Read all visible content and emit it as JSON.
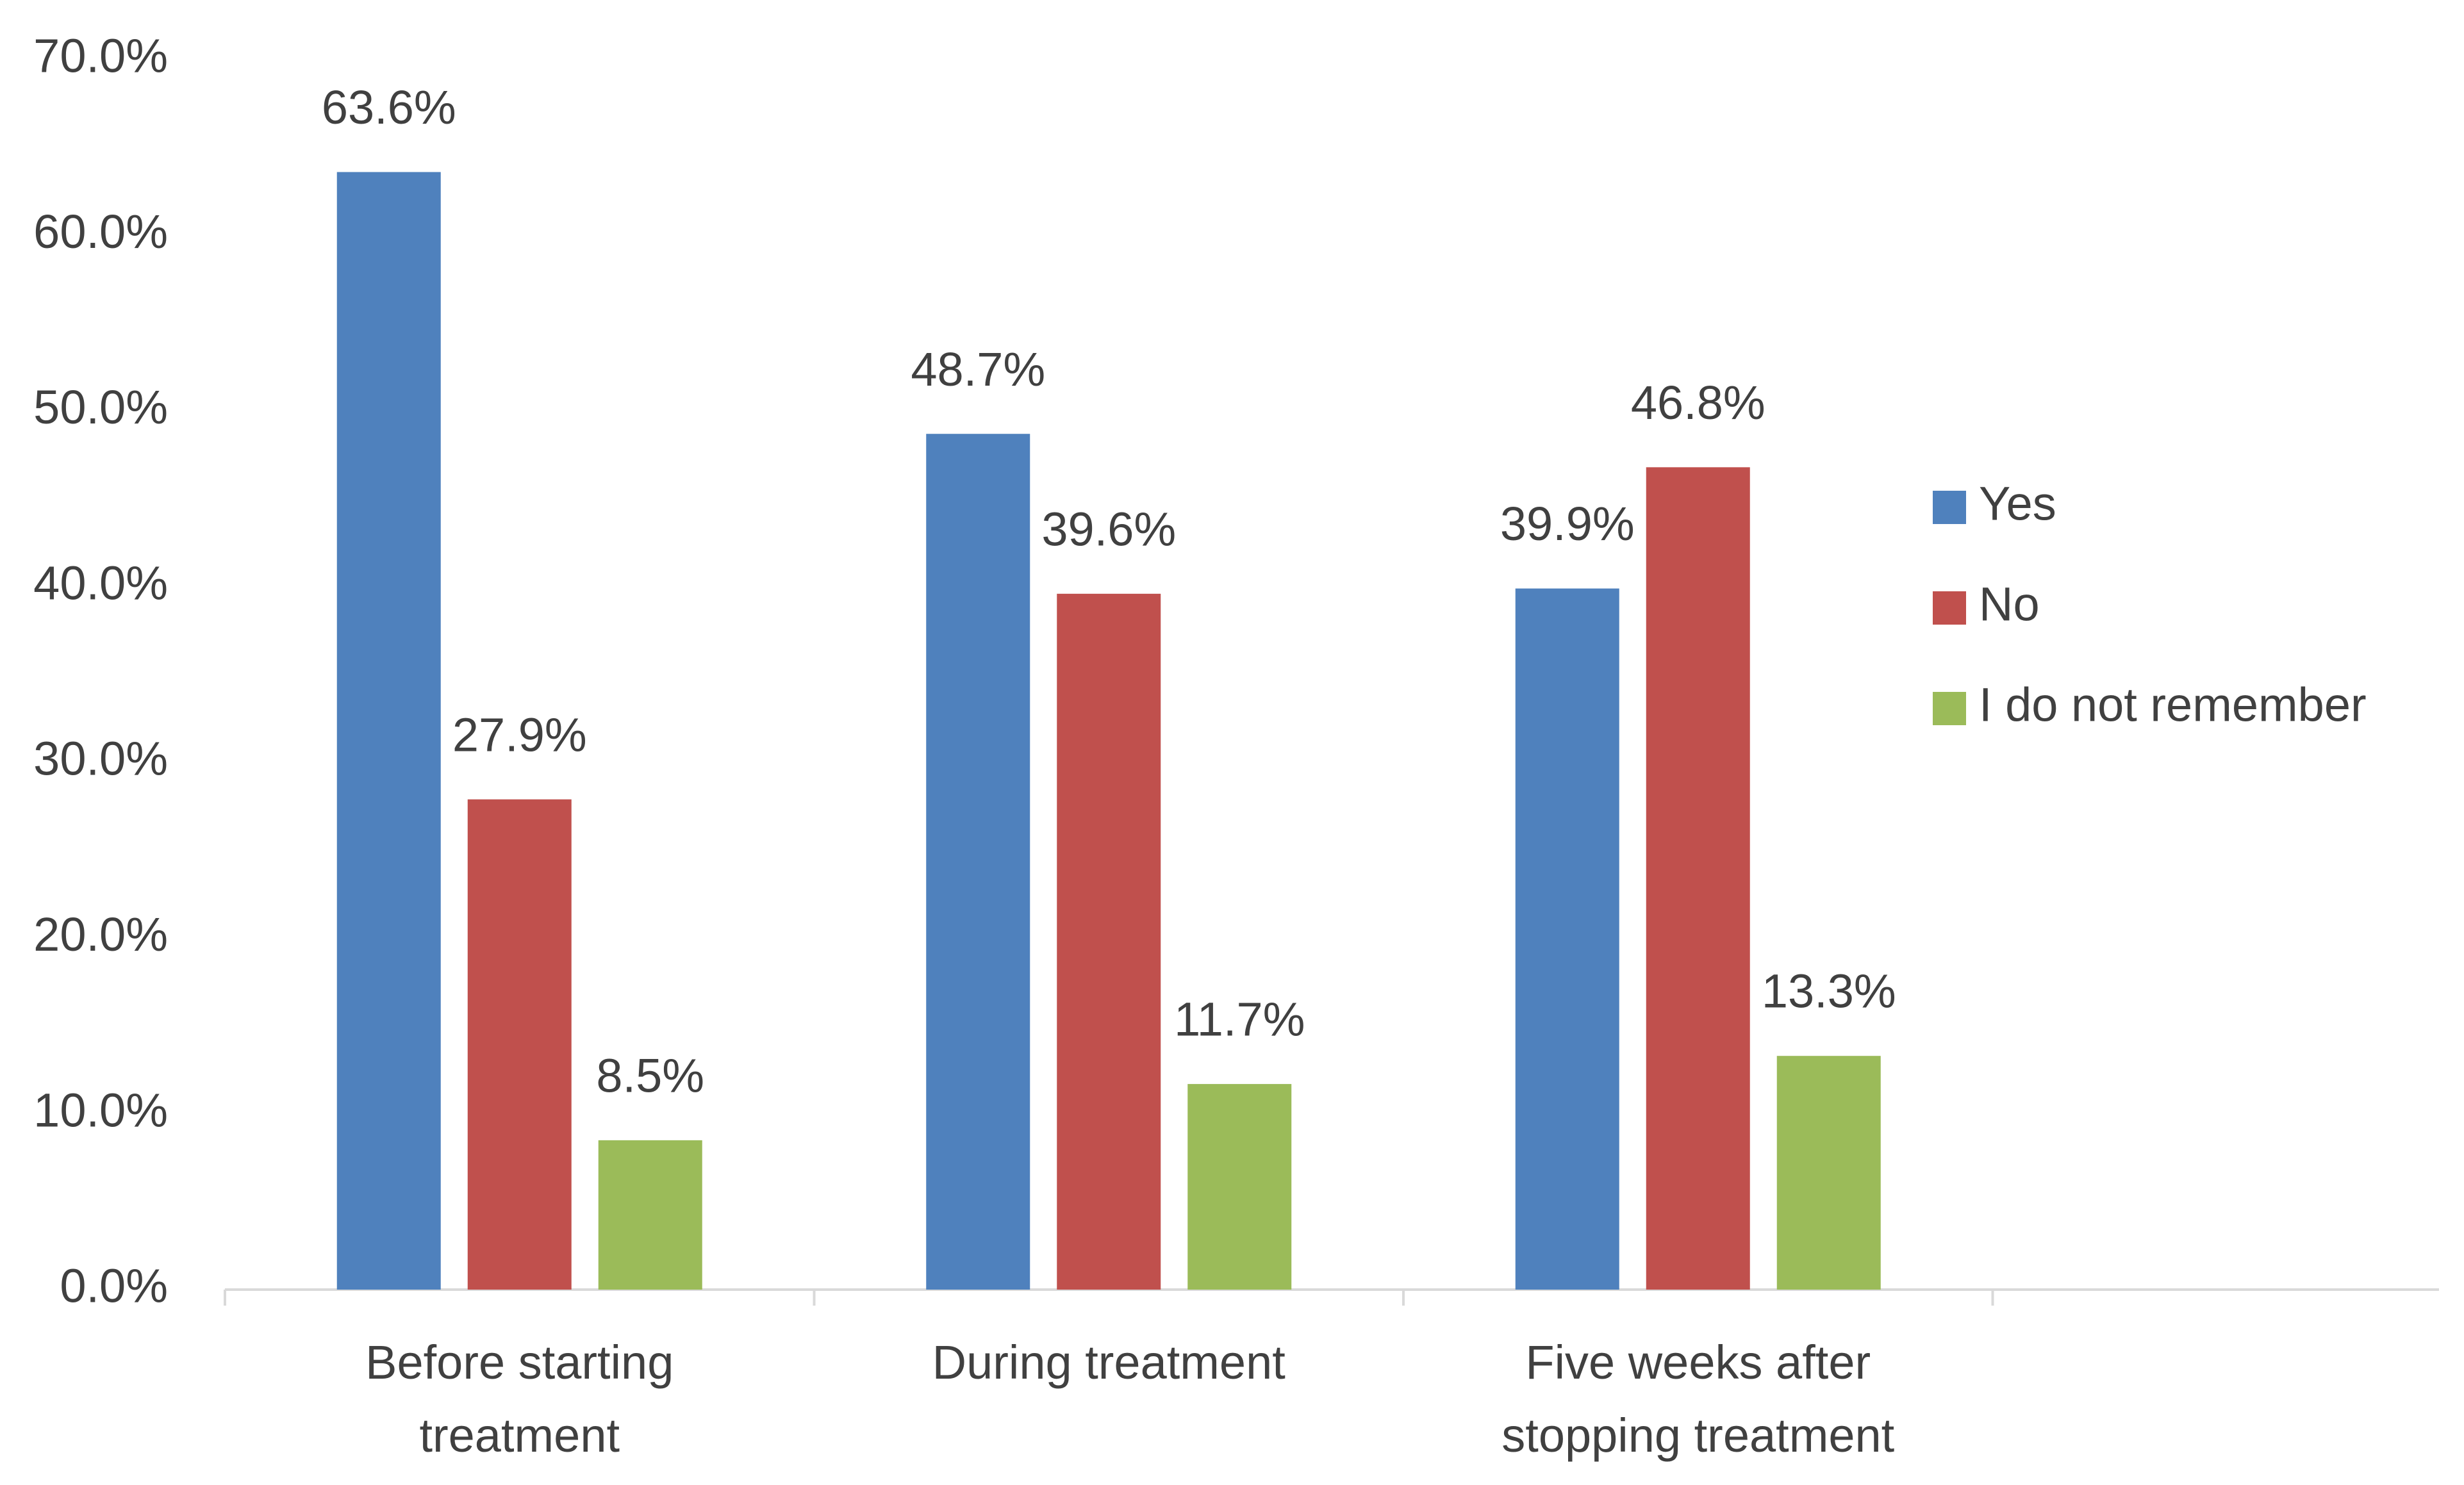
{
  "chart_data": {
    "type": "bar",
    "categories": [
      "Before starting treatment",
      "During treatment",
      "Five weeks after stopping treatment"
    ],
    "series": [
      {
        "name": "Yes",
        "color": "#4f81bd",
        "values": [
          63.6,
          48.7,
          39.9
        ],
        "value_labels": [
          "63.6%",
          "48.7%",
          "39.9%"
        ]
      },
      {
        "name": "No",
        "color": "#c0504d",
        "values": [
          27.9,
          39.6,
          46.8
        ],
        "value_labels": [
          "27.9%",
          "39.6%",
          "46.8%"
        ]
      },
      {
        "name": "I do not remember",
        "color": "#9bbb59",
        "values": [
          8.5,
          11.7,
          13.3
        ],
        "value_labels": [
          "8.5%",
          "11.7%",
          "13.3%"
        ]
      }
    ],
    "ylim": [
      0,
      70
    ],
    "yticks": [
      {
        "value": 0,
        "label": "0.0%"
      },
      {
        "value": 10,
        "label": "10.0%"
      },
      {
        "value": 20,
        "label": "20.0%"
      },
      {
        "value": 30,
        "label": "30.0%"
      },
      {
        "value": 40,
        "label": "40.0%"
      },
      {
        "value": 50,
        "label": "50.0%"
      },
      {
        "value": 60,
        "label": "60.0%"
      },
      {
        "value": 70,
        "label": "70.0%"
      }
    ],
    "grid": false,
    "legend": "right"
  }
}
